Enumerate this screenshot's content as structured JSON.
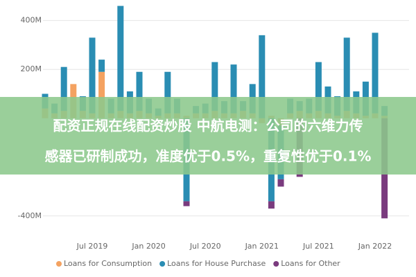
{
  "chart_data": {
    "type": "bar",
    "stacked": true,
    "categories": [
      null,
      null,
      null,
      null,
      null,
      "Jul 2019",
      null,
      null,
      null,
      null,
      null,
      "Jan 2020",
      null,
      null,
      null,
      null,
      null,
      "Jul 2020",
      null,
      null,
      null,
      null,
      null,
      "Jan 2021",
      null,
      null,
      null,
      null,
      null,
      "Jul 2021",
      null,
      null,
      null,
      null,
      null,
      "Jan 2022",
      null
    ],
    "series": [
      {
        "name": "Loans for Consumption",
        "color": "#f4a261",
        "values": [
          40,
          20,
          30,
          140,
          30,
          20,
          190,
          20,
          30,
          20,
          30,
          20,
          10,
          20,
          20,
          10,
          20,
          20,
          30,
          20,
          20,
          30,
          20,
          -20,
          10,
          -30,
          20,
          30,
          20,
          30,
          20,
          10,
          30,
          20,
          10,
          20,
          10
        ]
      },
      {
        "name": "Loans for House Purchase",
        "color": "#2a8db3",
        "values": [
          60,
          40,
          180,
          0,
          60,
          310,
          50,
          60,
          430,
          90,
          160,
          60,
          30,
          170,
          60,
          -340,
          30,
          40,
          200,
          50,
          200,
          40,
          120,
          340,
          -340,
          -220,
          60,
          40,
          60,
          200,
          110,
          80,
          300,
          90,
          140,
          330,
          40
        ]
      },
      {
        "name": "Loans for Other",
        "color": "#7a3b7e",
        "values": [
          0,
          0,
          0,
          0,
          0,
          0,
          0,
          0,
          0,
          0,
          0,
          0,
          0,
          0,
          0,
          -20,
          0,
          0,
          0,
          0,
          0,
          0,
          0,
          0,
          -30,
          -30,
          0,
          -240,
          0,
          0,
          0,
          0,
          0,
          0,
          0,
          0,
          -410
        ]
      }
    ],
    "ylim": [
      -480,
      470
    ],
    "yticks": [
      {
        "value": 400,
        "label": "400M"
      },
      {
        "value": 200,
        "label": "200M"
      },
      {
        "value": -400,
        "label": "-400M"
      }
    ],
    "grid": true,
    "legend": "bottom"
  },
  "banner": {
    "lines": [
      "配资正规在线配资炒股 中航电测：公司的六维力传",
      "感器已研制成功，准度优于0.5%，重复性优于0.1%",
      ".1%"
    ]
  }
}
